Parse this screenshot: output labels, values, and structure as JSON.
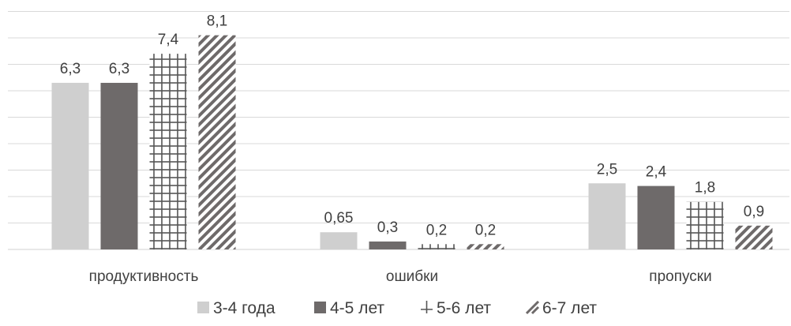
{
  "chart_data": {
    "type": "bar",
    "title": "",
    "xlabel": "",
    "ylabel": "",
    "categories": [
      "продуктивность",
      "ошибки",
      "пропуски"
    ],
    "series": [
      {
        "name": "3-4 года",
        "values": [
          6.3,
          0.65,
          2.5
        ],
        "labels": [
          "6,3",
          "0,65",
          "2,5"
        ],
        "color": "#cfcfcf",
        "pattern": "solid"
      },
      {
        "name": "4-5 лет",
        "values": [
          6.3,
          0.3,
          2.4
        ],
        "labels": [
          "6,3",
          "0,3",
          "2,4"
        ],
        "color": "#6e6a6a",
        "pattern": "solid"
      },
      {
        "name": "5-6 лет",
        "values": [
          7.4,
          0.2,
          1.8
        ],
        "labels": [
          "7,4",
          "0,2",
          "1,8"
        ],
        "color": "#555555",
        "pattern": "grid"
      },
      {
        "name": "6-7 лет",
        "values": [
          8.1,
          0.2,
          0.9
        ],
        "labels": [
          "8,1",
          "0,2",
          "0,9"
        ],
        "color": "#6e6a6a",
        "pattern": "diagonal"
      }
    ],
    "ylim": [
      0,
      9
    ],
    "gridlines": true,
    "legend_position": "bottom"
  },
  "colors": {
    "gridline": "#d9d9d9",
    "text": "#404040"
  }
}
